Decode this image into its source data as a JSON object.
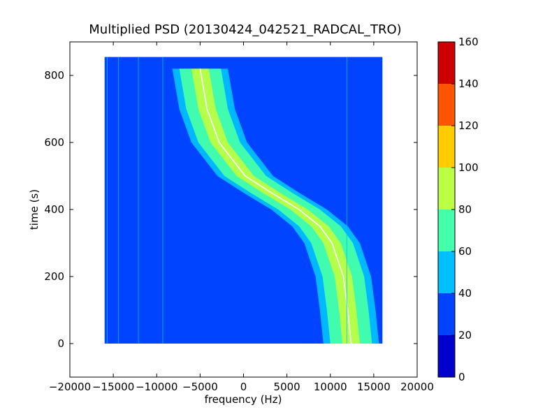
{
  "chart_data": {
    "type": "heatmap",
    "title": "Multiplied PSD (20130424_042521_RADCAL_TRO)",
    "xlabel": "frequency (Hz)",
    "ylabel": "time (s)",
    "xlim": [
      -20000,
      20000
    ],
    "ylim": [
      -100,
      900
    ],
    "xticks": [
      -20000,
      -15000,
      -10000,
      -5000,
      0,
      5000,
      10000,
      15000,
      20000
    ],
    "xtick_labels": [
      "−20000",
      "−15000",
      "−10000",
      "−5000",
      "0",
      "5000",
      "10000",
      "15000",
      "20000"
    ],
    "yticks": [
      0,
      200,
      400,
      600,
      800
    ],
    "ytick_labels": [
      "0",
      "200",
      "400",
      "600",
      "800"
    ],
    "data_extent": {
      "x": [
        -16000,
        16000
      ],
      "y": [
        0,
        855
      ]
    },
    "colorbar": {
      "levels": [
        0,
        20,
        40,
        60,
        80,
        100,
        120,
        140,
        160
      ],
      "tick_labels": [
        "0",
        "20",
        "40",
        "60",
        "80",
        "100",
        "120",
        "140",
        "160"
      ],
      "colors": [
        "#0000cc",
        "#0044ff",
        "#00bfff",
        "#44ffaa",
        "#bbff44",
        "#ffcc00",
        "#ff5500",
        "#cc0000"
      ]
    },
    "features": {
      "chirp_track": {
        "description_points_time_s": [
          820,
          700,
          600,
          500,
          450,
          400,
          350,
          300,
          200,
          100,
          0
        ],
        "description_points_freq_hz": [
          -5000,
          -4200,
          -2800,
          200,
          3200,
          6400,
          8800,
          10200,
          11500,
          12000,
          12400
        ],
        "core_value": 75
      },
      "vertical_lines_freq_hz": [
        -15700,
        -14400,
        -12100,
        -9300,
        11900
      ]
    }
  }
}
